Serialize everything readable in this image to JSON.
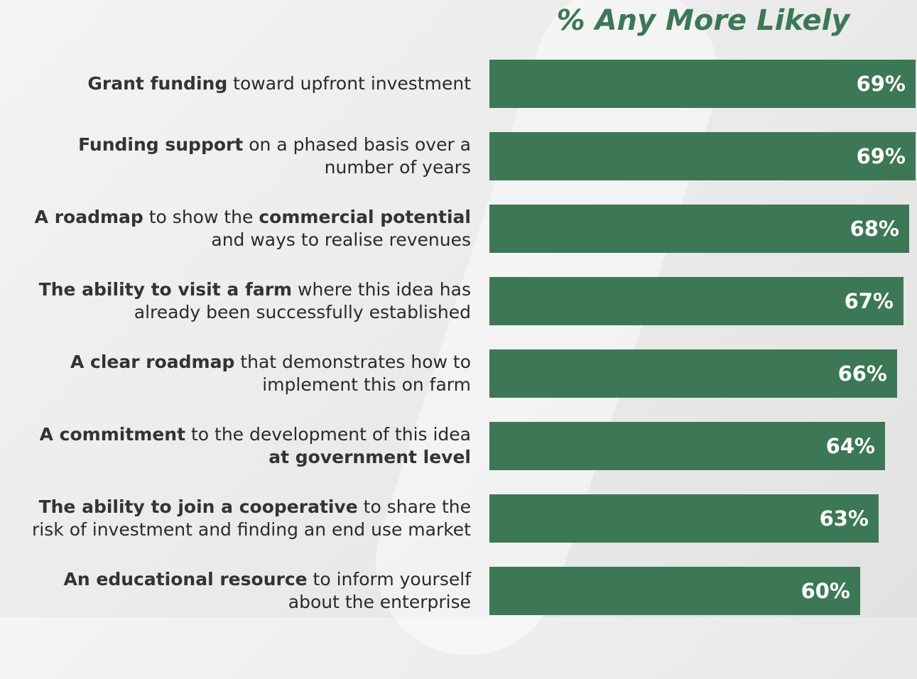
{
  "chart_data": {
    "type": "bar",
    "orientation": "horizontal",
    "title": "% Any More Likely",
    "xlim": [
      0,
      69
    ],
    "grid": false,
    "bar_color": "#3c7855",
    "categories": [
      "Grant funding toward upfront investment",
      "Funding support on a phased basis over a number of years",
      "A roadmap to show the commercial potential and ways to realise revenues",
      "The ability to visit a farm where this idea has already been successfully established",
      "A clear roadmap that demonstrates how to implement this on farm",
      "A commitment to the development of this idea at government level",
      "The ability to join a cooperative to share the risk of investment and finding an end use market",
      "An educational resource to inform yourself about the enterprise"
    ],
    "values": [
      69,
      69,
      68,
      67,
      66,
      64,
      63,
      60
    ],
    "value_labels": [
      "69%",
      "69%",
      "68%",
      "67%",
      "66%",
      "64%",
      "63%",
      "60%"
    ]
  },
  "labels": [
    {
      "line1": [
        {
          "b": "Grant funding"
        },
        {
          "t": " toward upfront investment"
        }
      ]
    },
    {
      "line1": [
        {
          "b": "Funding support"
        },
        {
          "t": " on a phased basis over a"
        }
      ],
      "line2": [
        {
          "t": "number of years"
        }
      ]
    },
    {
      "line1": [
        {
          "b": "A roadmap"
        },
        {
          "t": " to show the "
        },
        {
          "b": "commercial potential"
        }
      ],
      "line2": [
        {
          "t": "and ways to realise revenues"
        }
      ]
    },
    {
      "line1": [
        {
          "b": "The ability to visit a farm"
        },
        {
          "t": " where this idea has"
        }
      ],
      "line2": [
        {
          "t": "already been successfully established"
        }
      ]
    },
    {
      "line1": [
        {
          "b": "A clear roadmap"
        },
        {
          "t": " that demonstrates how to"
        }
      ],
      "line2": [
        {
          "t": "implement this on farm"
        }
      ]
    },
    {
      "line1": [
        {
          "b": "A commitment"
        },
        {
          "t": " to the development of this idea"
        }
      ],
      "line2": [
        {
          "b": "at government level"
        }
      ]
    },
    {
      "line1": [
        {
          "b": "The ability to join a cooperative"
        },
        {
          "t": " to share the"
        }
      ],
      "line2": [
        {
          "t": "risk of investment and finding an end use market"
        }
      ]
    },
    {
      "line1": [
        {
          "b": "An educational resource"
        },
        {
          "t": " to inform yourself"
        }
      ],
      "line2": [
        {
          "t": "about the enterprise"
        }
      ]
    }
  ]
}
